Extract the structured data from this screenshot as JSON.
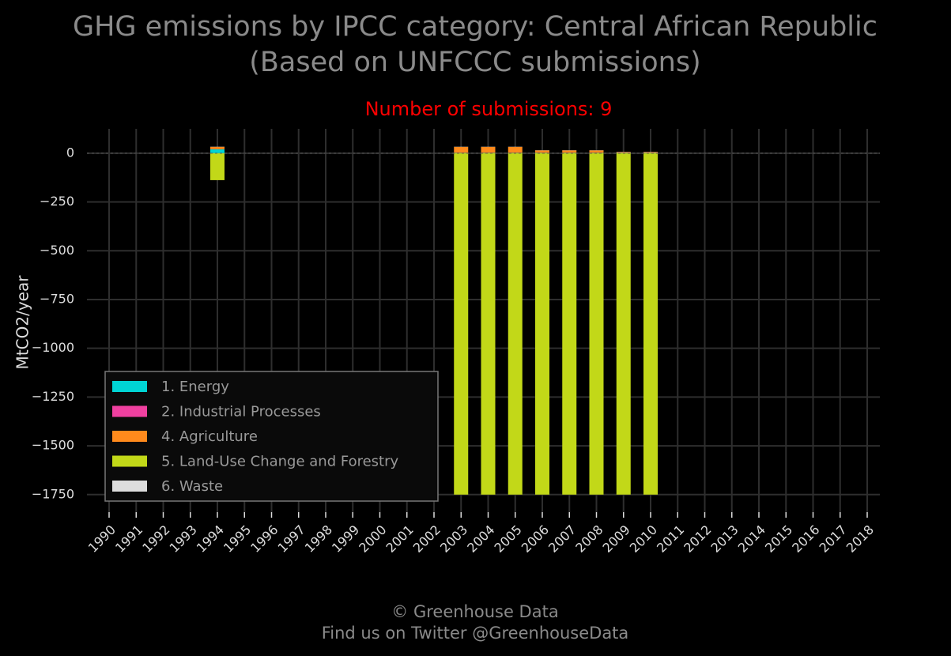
{
  "chart_data": {
    "type": "stacked_bar",
    "title": "GHG emissions by IPCC category: Central African Republic",
    "subtitle": "(Based on UNFCCC submissions)",
    "annotation": "Number of submissions: 9",
    "ylabel": "MtCO2/year",
    "footer": [
      "© Greenhouse Data",
      "Find us on Twitter @GreenhouseData"
    ],
    "categories": [
      "1990",
      "1991",
      "1992",
      "1993",
      "1994",
      "1995",
      "1996",
      "1997",
      "1998",
      "1999",
      "2000",
      "2001",
      "2002",
      "2003",
      "2004",
      "2005",
      "2006",
      "2007",
      "2008",
      "2009",
      "2010",
      "2011",
      "2012",
      "2013",
      "2014",
      "2015",
      "2016",
      "2017",
      "2018"
    ],
    "series": [
      {
        "name": "1. Energy",
        "color": "#00d4d4",
        "values": [
          null,
          null,
          null,
          null,
          20,
          null,
          null,
          null,
          null,
          null,
          null,
          null,
          null,
          2,
          2,
          2,
          2,
          2,
          2,
          2,
          2,
          null,
          null,
          null,
          null,
          null,
          null,
          null,
          null
        ]
      },
      {
        "name": "2. Industrial Processes",
        "color": "#f040a0",
        "values": [
          null,
          null,
          null,
          null,
          0.5,
          null,
          null,
          null,
          null,
          null,
          null,
          null,
          null,
          0.3,
          0.3,
          0.3,
          0.3,
          0.3,
          0.3,
          0.3,
          0.3,
          null,
          null,
          null,
          null,
          null,
          null,
          null,
          null
        ]
      },
      {
        "name": "4. Agriculture",
        "color": "#ff8a1c",
        "values": [
          null,
          null,
          null,
          null,
          12,
          null,
          null,
          null,
          null,
          null,
          null,
          null,
          null,
          30,
          30,
          30,
          12,
          12,
          12,
          4,
          4,
          null,
          null,
          null,
          null,
          null,
          null,
          null,
          null
        ]
      },
      {
        "name": "5. Land-Use Change and Forestry",
        "color": "#c2d818",
        "values": [
          null,
          null,
          null,
          null,
          -138,
          null,
          null,
          null,
          null,
          null,
          null,
          null,
          null,
          -1750,
          -1750,
          -1750,
          -1750,
          -1750,
          -1750,
          -1750,
          -1750,
          null,
          null,
          null,
          null,
          null,
          null,
          null,
          null
        ]
      },
      {
        "name": "6. Waste",
        "color": "#dddddd",
        "values": [
          null,
          null,
          null,
          null,
          1,
          null,
          null,
          null,
          null,
          null,
          null,
          null,
          null,
          1,
          1,
          1,
          1,
          1,
          1,
          1,
          1,
          null,
          null,
          null,
          null,
          null,
          null,
          null,
          null
        ]
      }
    ],
    "ylim": [
      -1840,
      125
    ],
    "yticks": [
      0,
      {
        "value": -250,
        "label": "−250"
      },
      {
        "value": -500,
        "label": "−500"
      },
      {
        "value": -750,
        "label": "−750"
      },
      {
        "value": -1000,
        "label": "−1000"
      },
      {
        "value": -1250,
        "label": "−1250"
      },
      {
        "value": -1500,
        "label": "−1500"
      },
      {
        "value": -1750,
        "label": "−1750"
      }
    ],
    "grid": true,
    "legend": "lower left"
  }
}
